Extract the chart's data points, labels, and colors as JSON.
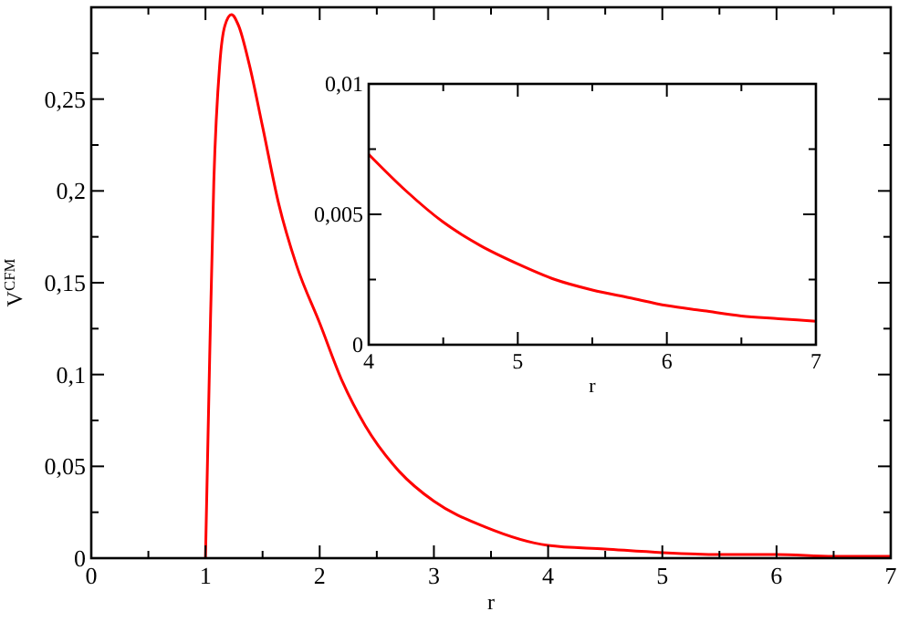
{
  "chart_data": [
    {
      "type": "line",
      "xlabel": "r",
      "ylabel": "V$^{CFM}$",
      "xlim": [
        0,
        7
      ],
      "ylim": [
        0,
        0.3
      ],
      "xticks": [
        0,
        {
          "value": 0.5,
          "label": null
        },
        1,
        {
          "value": 1.5,
          "label": null
        },
        2,
        {
          "value": 2.5,
          "label": null
        },
        3,
        {
          "value": 3.5,
          "label": null
        },
        4,
        {
          "value": 4.5,
          "label": null
        },
        5,
        {
          "value": 5.5,
          "label": null
        },
        6,
        {
          "value": 6.5,
          "label": null
        },
        7
      ],
      "yticks": [
        0,
        {
          "value": 0.025,
          "label": null
        },
        {
          "value": 0.05,
          "label": "0,05"
        },
        {
          "value": 0.075,
          "label": null
        },
        {
          "value": 0.1,
          "label": "0,1"
        },
        {
          "value": 0.125,
          "label": null
        },
        {
          "value": 0.15,
          "label": "0,15"
        },
        {
          "value": 0.175,
          "label": null
        },
        {
          "value": 0.2,
          "label": "0,2"
        },
        {
          "value": 0.225,
          "label": null
        },
        {
          "value": 0.25,
          "label": "0,25"
        },
        {
          "value": 0.275,
          "label": null
        }
      ],
      "series": [
        {
          "color": "#ff0000",
          "x": [
            1,
            1.037,
            1.073,
            1.125,
            1.17,
            1.228,
            1.29,
            1.383,
            1.5,
            1.641,
            1.8,
            2,
            2.2,
            2.4,
            2.7,
            3,
            3.45,
            4,
            4.5,
            5,
            5.5,
            6,
            6.5,
            7
          ],
          "values": [
            0,
            0.11,
            0.205,
            0.269,
            0.29,
            0.296,
            0.29,
            0.269,
            0.235,
            0.193,
            0.159,
            0.128,
            0.096,
            0.072,
            0.047,
            0.031,
            0.017,
            0.007,
            0.005,
            0.003,
            0.002,
            0.002,
            0.001,
            0.001
          ]
        }
      ]
    },
    {
      "type": "line",
      "xlabel": "r",
      "xlim": [
        4,
        7
      ],
      "ylim": [
        0,
        0.01
      ],
      "xticks": [
        4,
        {
          "value": 4.5,
          "label": null
        },
        5,
        {
          "value": 5.5,
          "label": null
        },
        6,
        {
          "value": 6.5,
          "label": null
        },
        7
      ],
      "yticks": [
        0,
        {
          "value": 0.0025,
          "label": null
        },
        {
          "value": 0.005,
          "label": "0,005"
        },
        {
          "value": 0.0075,
          "label": null
        },
        {
          "value": 0.01,
          "label": "0,01"
        }
      ],
      "series": [
        {
          "color": "#ff0000",
          "x": [
            4,
            4.25,
            4.5,
            4.75,
            5,
            5.25,
            5.5,
            5.75,
            6,
            6.25,
            6.5,
            6.75,
            7
          ],
          "values": [
            0.0073,
            0.0059,
            0.0047,
            0.0038,
            0.0031,
            0.0025,
            0.0021,
            0.0018,
            0.0015,
            0.0013,
            0.0011,
            0.001,
            0.0009
          ]
        }
      ]
    }
  ]
}
